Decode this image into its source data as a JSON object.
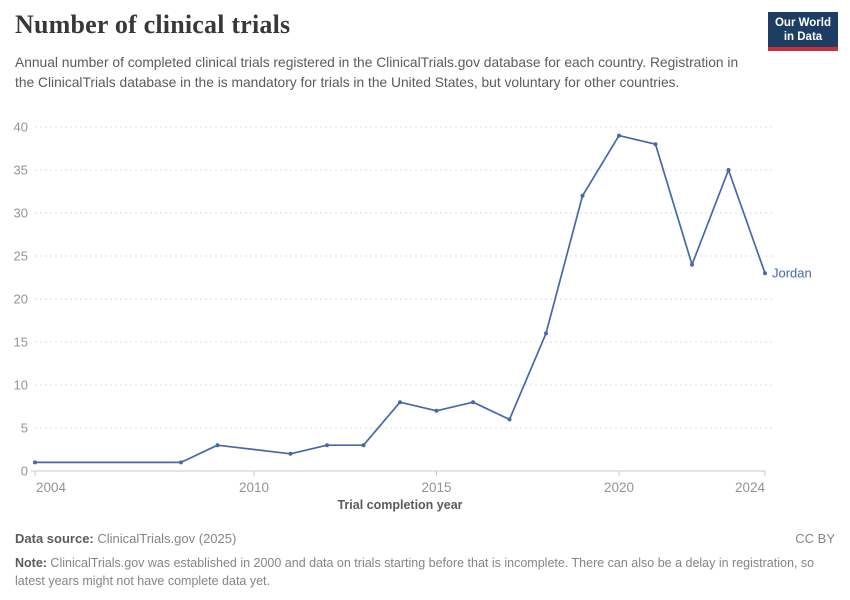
{
  "header": {
    "title": "Number of clinical trials",
    "subtitle": "Annual number of completed clinical trials registered in the ClinicalTrials.gov database for each country. Registration in the ClinicalTrials database in the is mandatory for trials in the United States, but voluntary for other countries.",
    "logo_line1": "Our World",
    "logo_line2": "in Data"
  },
  "chart_data": {
    "type": "line",
    "title": "Number of clinical trials",
    "xlabel": "Trial completion year",
    "ylabel": "",
    "xlim": [
      2004,
      2024
    ],
    "ylim": [
      0,
      40
    ],
    "x_ticks": [
      2004,
      2010,
      2015,
      2020,
      2024
    ],
    "y_ticks": [
      0,
      5,
      10,
      15,
      20,
      25,
      30,
      35,
      40
    ],
    "grid": "horizontal-dashed",
    "legend_position": "line-end-label",
    "series": [
      {
        "name": "Jordan",
        "color": "#4668a8",
        "x": [
          2004,
          2008,
          2009,
          2011,
          2012,
          2013,
          2014,
          2015,
          2016,
          2017,
          2018,
          2019,
          2020,
          2021,
          2022,
          2023,
          2024
        ],
        "values": [
          1,
          1,
          3,
          2,
          3,
          3,
          8,
          7,
          8,
          6,
          16,
          32,
          39,
          38,
          24,
          35,
          23
        ]
      }
    ]
  },
  "footer": {
    "datasource_label": "Data source:",
    "datasource_value": " ClinicalTrials.gov (2025)",
    "license": "CC BY",
    "note_label": "Note:",
    "note_value": " ClinicalTrials.gov was established in 2000 and data on trials starting before that is incomplete. There can also be a delay in registration, so latest years might not have complete data yet."
  },
  "colors": {
    "accent_blue": "#4668a8",
    "logo_navy": "#1d3d63",
    "logo_red": "#c9303e",
    "grid": "#dddddd",
    "axis": "#c8c8c8",
    "tick_text": "#949494",
    "axis_title_text": "#5b5b5b",
    "title_text": "#383838",
    "body_text": "#5b5b5b",
    "muted_text": "#858585"
  }
}
